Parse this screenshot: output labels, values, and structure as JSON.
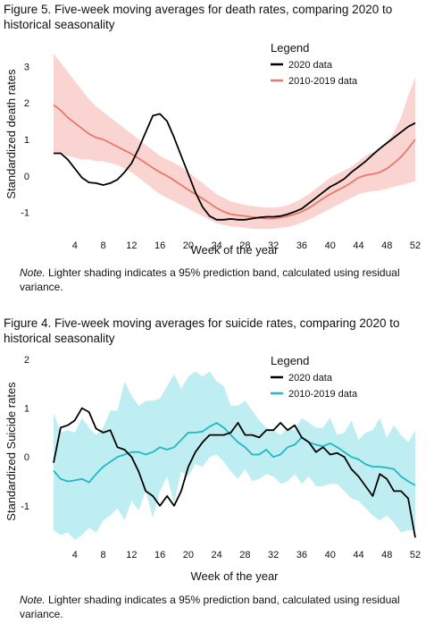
{
  "charts": [
    {
      "title": "Figure 5. Five-week moving averages for death rates, comparing 2020 to historical seasonality",
      "note_label": "Note.",
      "note_text": " Lighter shading indicates a 95% prediction band, calculated using residual variance."
    },
    {
      "title": "Figure 4. Five-week moving averages for suicide rates, comparing 2020 to historical seasonality",
      "note_label": "Note.",
      "note_text": " Lighter shading indicates a 95% prediction band, calculated using residual variance."
    }
  ],
  "chart_data": [
    {
      "type": "line",
      "title": "Figure 5. Five-week moving averages for death rates, comparing 2020 to historical seasonality",
      "xlabel": "Week of the year",
      "ylabel": "Standardized death rates",
      "xlim": [
        1,
        52
      ],
      "ylim": [
        -1.5,
        3.4
      ],
      "xticks": [
        4,
        8,
        12,
        16,
        20,
        24,
        28,
        32,
        36,
        40,
        44,
        48,
        52
      ],
      "yticks": [
        -1,
        0,
        1,
        2,
        3
      ],
      "grid": false,
      "legend": {
        "title": "Legend",
        "placement": "top-right"
      },
      "colors": {
        "series_2020": "#000000",
        "historical": "#e8786b",
        "band": "#fad4d0"
      },
      "x": [
        1,
        2,
        3,
        4,
        5,
        6,
        7,
        8,
        9,
        10,
        11,
        12,
        13,
        14,
        15,
        16,
        17,
        18,
        19,
        20,
        21,
        22,
        23,
        24,
        25,
        26,
        27,
        28,
        29,
        30,
        31,
        32,
        33,
        34,
        35,
        36,
        37,
        38,
        39,
        40,
        41,
        42,
        43,
        44,
        45,
        46,
        47,
        48,
        49,
        50,
        51,
        52
      ],
      "series": [
        {
          "name": "2020 data",
          "values": [
            0.62,
            0.62,
            0.45,
            0.2,
            -0.05,
            -0.18,
            -0.2,
            -0.25,
            -0.2,
            -0.1,
            0.1,
            0.35,
            0.75,
            1.2,
            1.65,
            1.7,
            1.5,
            1.05,
            0.55,
            0.05,
            -0.45,
            -0.85,
            -1.1,
            -1.2,
            -1.2,
            -1.18,
            -1.2,
            -1.2,
            -1.17,
            -1.14,
            -1.12,
            -1.12,
            -1.1,
            -1.05,
            -0.98,
            -0.9,
            -0.75,
            -0.6,
            -0.45,
            -0.3,
            -0.2,
            -0.08,
            0.1,
            0.25,
            0.4,
            0.58,
            0.75,
            0.9,
            1.05,
            1.2,
            1.35,
            1.45
          ]
        },
        {
          "name": "2010-2019 data",
          "values": [
            1.95,
            1.8,
            1.6,
            1.45,
            1.3,
            1.15,
            1.05,
            1.0,
            0.9,
            0.8,
            0.7,
            0.6,
            0.48,
            0.35,
            0.22,
            0.1,
            0.0,
            -0.12,
            -0.25,
            -0.38,
            -0.5,
            -0.62,
            -0.75,
            -0.88,
            -0.98,
            -1.05,
            -1.08,
            -1.1,
            -1.13,
            -1.15,
            -1.17,
            -1.17,
            -1.14,
            -1.1,
            -1.05,
            -0.98,
            -0.88,
            -0.75,
            -0.62,
            -0.5,
            -0.4,
            -0.3,
            -0.18,
            -0.05,
            0.02,
            0.05,
            0.1,
            0.2,
            0.35,
            0.52,
            0.75,
            1.0
          ]
        }
      ],
      "band": {
        "name": "95% prediction band",
        "lower": [
          0.6,
          0.6,
          0.55,
          0.5,
          0.45,
          0.45,
          0.4,
          0.4,
          0.35,
          0.3,
          0.2,
          0.1,
          -0.05,
          -0.2,
          -0.35,
          -0.5,
          -0.6,
          -0.7,
          -0.8,
          -0.9,
          -1.0,
          -1.1,
          -1.2,
          -1.3,
          -1.35,
          -1.38,
          -1.4,
          -1.42,
          -1.45,
          -1.45,
          -1.45,
          -1.45,
          -1.42,
          -1.4,
          -1.35,
          -1.28,
          -1.2,
          -1.1,
          -1.0,
          -0.9,
          -0.8,
          -0.7,
          -0.6,
          -0.5,
          -0.45,
          -0.42,
          -0.4,
          -0.35,
          -0.3,
          -0.25,
          -0.2,
          -0.15
        ],
        "upper": [
          3.35,
          3.1,
          2.85,
          2.6,
          2.35,
          2.1,
          1.9,
          1.75,
          1.6,
          1.45,
          1.3,
          1.15,
          1.0,
          0.85,
          0.7,
          0.55,
          0.45,
          0.35,
          0.25,
          0.1,
          -0.05,
          -0.2,
          -0.35,
          -0.5,
          -0.6,
          -0.7,
          -0.75,
          -0.8,
          -0.82,
          -0.85,
          -0.87,
          -0.87,
          -0.85,
          -0.8,
          -0.72,
          -0.62,
          -0.5,
          -0.35,
          -0.2,
          -0.05,
          0.05,
          0.15,
          0.25,
          0.4,
          0.55,
          0.65,
          0.75,
          0.9,
          1.2,
          1.6,
          2.2,
          2.7
        ]
      }
    },
    {
      "type": "line",
      "title": "Figure 4. Five-week moving averages for suicide rates, comparing 2020 to historical seasonality",
      "xlabel": "Week of the year",
      "ylabel": "Standardized Suicide rates",
      "xlim": [
        1,
        52
      ],
      "ylim": [
        -1.7,
        2.0
      ],
      "xticks": [
        4,
        8,
        12,
        16,
        20,
        24,
        28,
        32,
        36,
        40,
        44,
        48,
        52
      ],
      "yticks": [
        -1,
        0,
        1,
        2
      ],
      "grid": false,
      "legend": {
        "title": "Legend",
        "placement": "top-right"
      },
      "colors": {
        "series_2020": "#000000",
        "historical": "#1fb8c4",
        "band": "#bfeef2"
      },
      "x": [
        1,
        2,
        3,
        4,
        5,
        6,
        7,
        8,
        9,
        10,
        11,
        12,
        13,
        14,
        15,
        16,
        17,
        18,
        19,
        20,
        21,
        22,
        23,
        24,
        25,
        26,
        27,
        28,
        29,
        30,
        31,
        32,
        33,
        34,
        35,
        36,
        37,
        38,
        39,
        40,
        41,
        42,
        43,
        44,
        45,
        46,
        47,
        48,
        49,
        50,
        51,
        52
      ],
      "series": [
        {
          "name": "2020 data",
          "values": [
            -0.12,
            0.6,
            0.65,
            0.75,
            1.0,
            0.92,
            0.58,
            0.5,
            0.55,
            0.2,
            0.15,
            0.0,
            -0.3,
            -0.7,
            -0.8,
            -1.0,
            -0.8,
            -1.0,
            -0.7,
            -0.2,
            0.1,
            0.3,
            0.45,
            0.45,
            0.45,
            0.5,
            0.7,
            0.45,
            0.45,
            0.4,
            0.55,
            0.55,
            0.7,
            0.55,
            0.65,
            0.4,
            0.3,
            0.1,
            0.2,
            0.05,
            0.08,
            0.0,
            -0.25,
            -0.4,
            -0.6,
            -0.8,
            -0.35,
            -0.45,
            -0.7,
            -0.7,
            -0.85,
            -1.65
          ]
        },
        {
          "name": "2010-2019 data",
          "values": [
            -0.28,
            -0.45,
            -0.5,
            -0.48,
            -0.45,
            -0.52,
            -0.35,
            -0.2,
            -0.1,
            0.0,
            0.05,
            0.1,
            0.1,
            0.05,
            0.1,
            0.2,
            0.15,
            0.2,
            0.35,
            0.5,
            0.5,
            0.52,
            0.62,
            0.7,
            0.6,
            0.45,
            0.3,
            0.2,
            0.05,
            0.05,
            0.15,
            0.0,
            0.05,
            0.2,
            0.25,
            0.4,
            0.3,
            0.25,
            0.22,
            0.28,
            0.2,
            0.1,
            0.0,
            -0.05,
            -0.15,
            -0.2,
            -0.2,
            -0.22,
            -0.25,
            -0.4,
            -0.5,
            -0.58
          ]
        }
      ],
      "band": {
        "name": "95% prediction band",
        "lower": [
          -1.5,
          -1.6,
          -1.55,
          -1.7,
          -1.6,
          -1.45,
          -1.55,
          -1.3,
          -1.2,
          -1.05,
          -1.3,
          -0.9,
          -1.1,
          -0.7,
          -1.25,
          -0.7,
          -0.4,
          -0.95,
          -0.3,
          -0.4,
          -0.15,
          -0.2,
          0.0,
          0.05,
          -0.1,
          -0.3,
          -0.45,
          -0.25,
          -0.5,
          -0.45,
          -0.35,
          -0.4,
          -0.55,
          -0.5,
          -0.35,
          -0.55,
          -0.4,
          -0.6,
          -0.6,
          -0.55,
          -0.55,
          -0.7,
          -0.85,
          -0.9,
          -1.05,
          -1.2,
          -1.3,
          -1.2,
          -1.35,
          -1.55,
          -1.5,
          -1.5
        ],
        "upper": [
          0.9,
          0.5,
          0.55,
          0.5,
          0.8,
          0.6,
          0.45,
          0.6,
          0.95,
          0.95,
          1.55,
          1.25,
          1.05,
          1.15,
          1.15,
          1.2,
          1.45,
          1.7,
          1.4,
          1.65,
          1.75,
          1.65,
          1.75,
          1.55,
          1.45,
          1.05,
          1.05,
          1.15,
          0.95,
          0.75,
          0.6,
          0.55,
          0.45,
          0.6,
          0.55,
          0.8,
          0.7,
          0.6,
          0.6,
          0.8,
          0.45,
          0.5,
          0.75,
          0.35,
          0.5,
          0.55,
          0.8,
          0.4,
          0.65,
          0.45,
          0.3,
          0.55
        ]
      }
    }
  ]
}
